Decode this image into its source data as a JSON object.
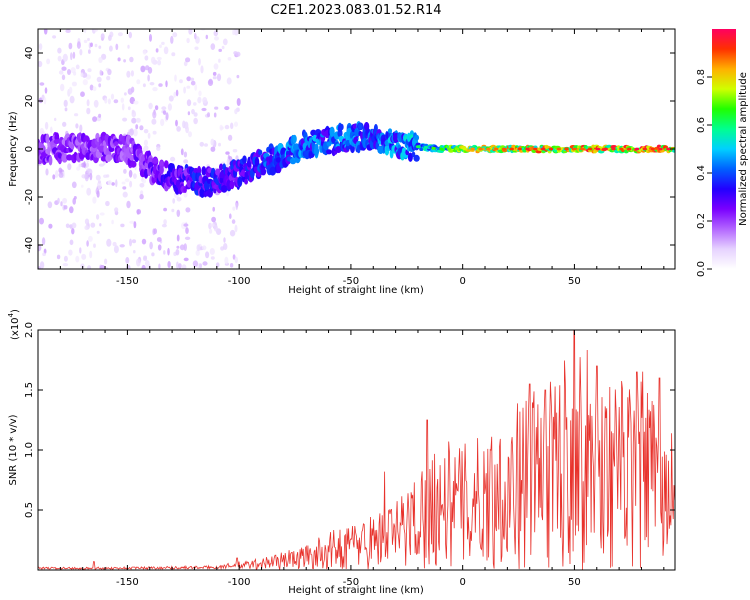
{
  "figure_title": "C2E1.2023.083.01.52.R14",
  "colors": {
    "snr_line": "#e8322c",
    "spectrum_low": "#e9d6fb",
    "spectrum_mid": "#7a1fe0",
    "spectrum_high": "#00f0ff"
  },
  "chart_data": [
    {
      "type": "heatmap",
      "title": "",
      "xlabel": "Height of straight line (km)",
      "ylabel": "Frequency (Hz)",
      "xlim": [
        -190,
        95
      ],
      "ylim": [
        -50,
        50
      ],
      "x_ticks": [
        -150,
        -100,
        -50,
        0,
        50
      ],
      "y_ticks": [
        -40,
        -20,
        0,
        20,
        40
      ],
      "colorbar": {
        "label": "Normalized spectral amplitude",
        "range": [
          0,
          1
        ],
        "ticks": [
          "0.0",
          "0.2",
          "0.4",
          "0.6",
          "0.8"
        ],
        "colormap": [
          "#ffffff",
          "#e6d2ff",
          "#b366ff",
          "#7a00ff",
          "#2200ff",
          "#0060ff",
          "#00d0ff",
          "#00ff90",
          "#20ff00",
          "#d0ff00",
          "#ffb000",
          "#ff3000",
          "#ff0060"
        ]
      },
      "ridge": [
        {
          "x": -185,
          "f": 0
        },
        {
          "x": -170,
          "f": 1
        },
        {
          "x": -150,
          "f": 0
        },
        {
          "x": -140,
          "f": -8
        },
        {
          "x": -130,
          "f": -12
        },
        {
          "x": -115,
          "f": -14
        },
        {
          "x": -100,
          "f": -10
        },
        {
          "x": -90,
          "f": -6
        },
        {
          "x": -80,
          "f": -3
        },
        {
          "x": -70,
          "f": 2
        },
        {
          "x": -60,
          "f": 3
        },
        {
          "x": -50,
          "f": 5
        },
        {
          "x": -40,
          "f": 5
        },
        {
          "x": -30,
          "f": 2
        },
        {
          "x": -20,
          "f": 1
        },
        {
          "x": -10,
          "f": 0
        },
        {
          "x": 0,
          "f": 0
        },
        {
          "x": 20,
          "f": 0
        },
        {
          "x": 50,
          "f": 0
        },
        {
          "x": 90,
          "f": 0
        }
      ],
      "peak_amplitude": [
        {
          "x": -185,
          "a": 0.25
        },
        {
          "x": -150,
          "a": 0.25
        },
        {
          "x": -120,
          "a": 0.35
        },
        {
          "x": -100,
          "a": 0.35
        },
        {
          "x": -80,
          "a": 0.45
        },
        {
          "x": -60,
          "a": 0.45
        },
        {
          "x": -40,
          "a": 0.45
        },
        {
          "x": -25,
          "a": 0.5
        },
        {
          "x": -10,
          "a": 0.6
        },
        {
          "x": 0,
          "a": 0.75
        },
        {
          "x": 20,
          "a": 0.85
        },
        {
          "x": 90,
          "a": 0.9
        }
      ]
    },
    {
      "type": "line",
      "title": "",
      "xlabel": "Height of straight line (km)",
      "ylabel": "SNR (10 * v/v)",
      "y_scale_label": "(x10",
      "y_scale_exp": "4",
      "xlim": [
        -190,
        95
      ],
      "ylim": [
        0,
        2.0
      ],
      "x_ticks": [
        -150,
        -100,
        -50,
        0,
        50
      ],
      "y_ticks": [
        "0.5",
        "1.0",
        "1.5",
        "2.0"
      ],
      "series": [
        {
          "envelope": [
            {
              "x": -190,
              "y": 0.02
            },
            {
              "x": -160,
              "y": 0.02
            },
            {
              "x": -110,
              "y": 0.03
            },
            {
              "x": -100,
              "y": 0.06
            },
            {
              "x": -90,
              "y": 0.1
            },
            {
              "x": -80,
              "y": 0.15
            },
            {
              "x": -70,
              "y": 0.2
            },
            {
              "x": -60,
              "y": 0.3
            },
            {
              "x": -50,
              "y": 0.38
            },
            {
              "x": -40,
              "y": 0.45
            },
            {
              "x": -30,
              "y": 0.55
            },
            {
              "x": -20,
              "y": 0.8
            },
            {
              "x": -10,
              "y": 1.05
            },
            {
              "x": 0,
              "y": 1.0
            },
            {
              "x": 10,
              "y": 1.1
            },
            {
              "x": 20,
              "y": 1.25
            },
            {
              "x": 30,
              "y": 1.45
            },
            {
              "x": 40,
              "y": 1.5
            },
            {
              "x": 50,
              "y": 1.95
            },
            {
              "x": 60,
              "y": 1.6
            },
            {
              "x": 70,
              "y": 1.5
            },
            {
              "x": 80,
              "y": 1.6
            },
            {
              "x": 90,
              "y": 1.2
            }
          ],
          "peaks": [
            {
              "x": -165,
              "y": 0.07
            },
            {
              "x": -101,
              "y": 0.1
            },
            {
              "x": -35,
              "y": 0.82
            },
            {
              "x": -16,
              "y": 1.25
            },
            {
              "x": 30,
              "y": 1.55
            },
            {
              "x": 37,
              "y": 1.5
            },
            {
              "x": 50,
              "y": 2.0
            },
            {
              "x": 60,
              "y": 1.7
            },
            {
              "x": 78,
              "y": 1.65
            },
            {
              "x": 88,
              "y": 1.6
            }
          ],
          "dips": [
            {
              "x": 76,
              "y": 0.03
            },
            {
              "x": 90,
              "y": 0.25
            },
            {
              "x": 48,
              "y": 0.05
            }
          ]
        }
      ]
    }
  ]
}
